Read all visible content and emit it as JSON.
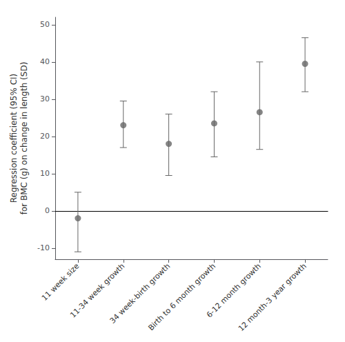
{
  "chart_data": {
    "type": "errorbar",
    "categories": [
      "11 week size",
      "11-34 week growth",
      "34 week-birth growth",
      "Birth to 6 month growth",
      "6-12 month growth",
      "12 month-3 year growth"
    ],
    "values": [
      -2.0,
      23.0,
      18.0,
      23.5,
      26.5,
      39.5
    ],
    "ci_lower": [
      -11.0,
      17.0,
      9.5,
      14.5,
      16.5,
      32.0
    ],
    "ci_upper": [
      5.0,
      29.5,
      26.0,
      32.0,
      40.0,
      46.5
    ],
    "color": "#666666",
    "ylabel": "Regression coefficient (95% CI)\nfor BMC (g) on change in length (SD)",
    "ylim": [
      -13,
      52
    ],
    "yticks": [
      -10,
      0,
      10,
      20,
      30,
      40,
      50
    ],
    "grid": false
  }
}
